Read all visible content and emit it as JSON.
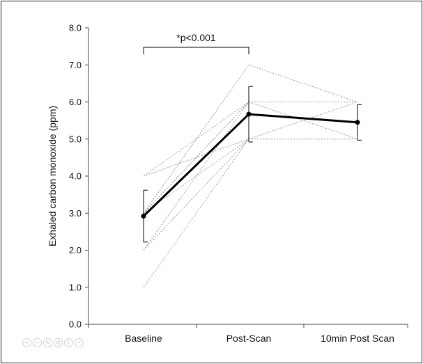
{
  "chart_data": {
    "type": "line",
    "xlabel": "",
    "ylabel": "Exhaled carbon monoxide (ppm)",
    "ylim": [
      0,
      8
    ],
    "yticks": [
      "0.0",
      "1.0",
      "2.0",
      "3.0",
      "4.0",
      "5.0",
      "6.0",
      "7.0",
      "8.0"
    ],
    "categories": [
      "Baseline",
      "Post-Scan",
      "10min Post Scan"
    ],
    "mean_series": {
      "values": [
        2.92,
        5.67,
        5.45
      ],
      "error": [
        0.7,
        0.75,
        0.48
      ],
      "color": "#000000"
    },
    "individual_series": [
      {
        "values": [
          1.0,
          5.0
        ]
      },
      {
        "values": [
          2.0,
          5.0
        ]
      },
      {
        "values": [
          2.0,
          6.0
        ]
      },
      {
        "values": [
          3.0,
          5.0
        ]
      },
      {
        "values": [
          3.0,
          6.0
        ]
      },
      {
        "values": [
          3.0,
          7.0
        ]
      },
      {
        "values": [
          3.0,
          6.0
        ]
      },
      {
        "values": [
          4.0,
          6.0
        ]
      },
      {
        "values": [
          4.0,
          5.0
        ]
      },
      {
        "values": [
          null,
          7.0,
          6.0
        ]
      },
      {
        "values": [
          null,
          6.0,
          6.0
        ]
      },
      {
        "values": [
          null,
          6.0,
          5.0
        ]
      },
      {
        "values": [
          null,
          5.0,
          5.0
        ]
      },
      {
        "values": [
          null,
          5.0,
          6.0
        ]
      }
    ],
    "individual_color": "#9a9a9a",
    "significance": {
      "label": "*p<0.001",
      "from": "Baseline",
      "to": "Post-Scan"
    },
    "grid": false,
    "legend": "none"
  },
  "toolbar": {
    "icons": [
      "zoom-in-icon",
      "zoom-out-icon",
      "edit-icon",
      "settings-icon",
      "search-icon",
      "minus-icon"
    ],
    "glyphs": [
      "+",
      "−",
      "✎",
      "⚙",
      "⚲",
      "−"
    ]
  }
}
